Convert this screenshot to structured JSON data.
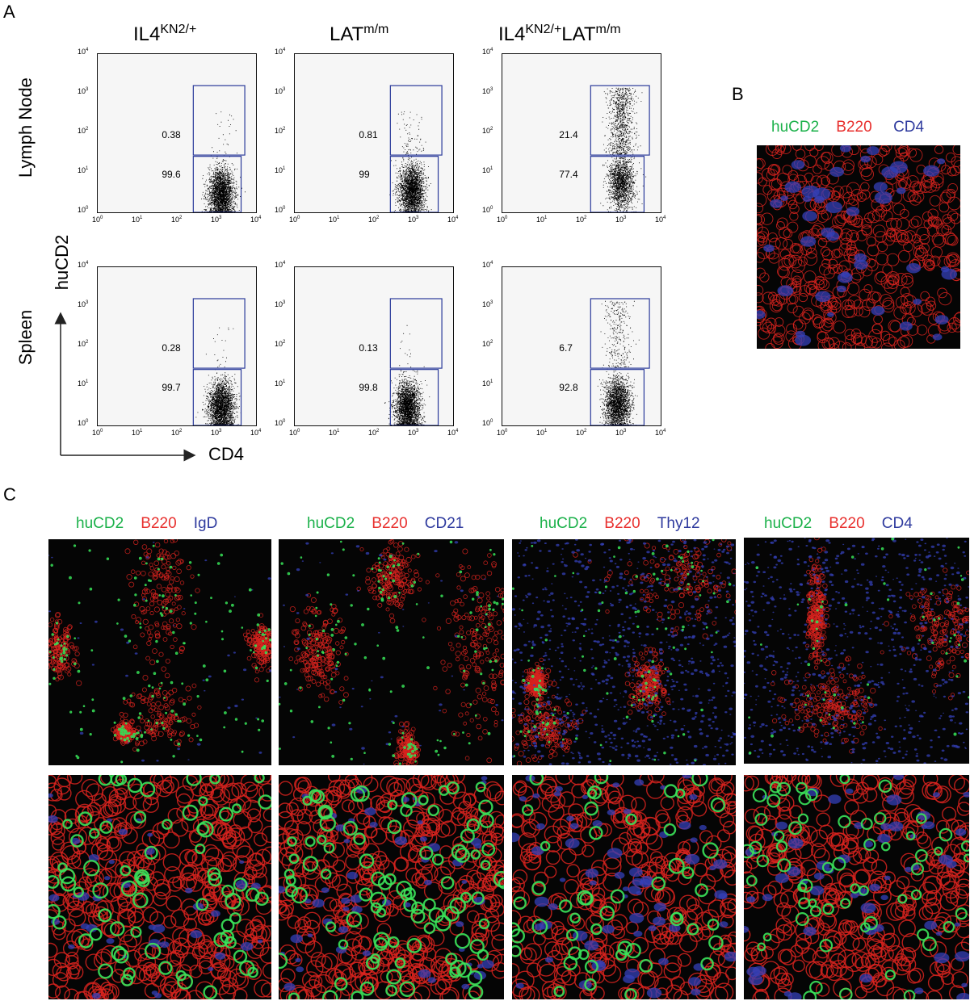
{
  "panels": {
    "a": "A",
    "b": "B",
    "c": "C"
  },
  "panel_a": {
    "columns": [
      {
        "base": "IL4",
        "sup": "KN2/+",
        "base2": "",
        "sup2": ""
      },
      {
        "base": "LAT",
        "sup": "m/m",
        "base2": "",
        "sup2": ""
      },
      {
        "base": "IL4",
        "sup": "KN2/+",
        "base2": "LAT",
        "sup2": "m/m"
      }
    ],
    "rows": [
      "Lymph Node",
      "Spleen"
    ],
    "y_axis_label": "huCD2",
    "x_axis_label": "CD4",
    "tick_base": "10",
    "tick_exponents": [
      "0",
      "1",
      "2",
      "3",
      "4"
    ]
  },
  "chart_data": [
    {
      "type": "scatter",
      "row": "Lymph Node",
      "column": "IL4KN2/+",
      "xlabel": "CD4",
      "ylabel": "huCD2",
      "scale": "log",
      "xlim": [
        1,
        10000
      ],
      "ylim": [
        1,
        10000
      ],
      "gates": [
        {
          "name": "upper",
          "value": "0.38"
        },
        {
          "name": "lower",
          "value": "99.6"
        }
      ],
      "cluster_center": [
        1300,
        4
      ],
      "upper_fraction": 0.0038
    },
    {
      "type": "scatter",
      "row": "Lymph Node",
      "column": "LATm/m",
      "xlabel": "CD4",
      "ylabel": "huCD2",
      "scale": "log",
      "xlim": [
        1,
        10000
      ],
      "ylim": [
        1,
        10000
      ],
      "gates": [
        {
          "name": "upper",
          "value": "0.81"
        },
        {
          "name": "lower",
          "value": "99"
        }
      ],
      "cluster_center": [
        900,
        5
      ],
      "upper_fraction": 0.0081
    },
    {
      "type": "scatter",
      "row": "Lymph Node",
      "column": "IL4KN2/+LATm/m",
      "xlabel": "CD4",
      "ylabel": "huCD2",
      "scale": "log",
      "xlim": [
        1,
        10000
      ],
      "ylim": [
        1,
        10000
      ],
      "gates": [
        {
          "name": "upper",
          "value": "21.4"
        },
        {
          "name": "lower",
          "value": "77.4"
        }
      ],
      "cluster_center": [
        1000,
        8
      ],
      "upper_fraction": 0.214
    },
    {
      "type": "scatter",
      "row": "Spleen",
      "column": "IL4KN2/+",
      "xlabel": "CD4",
      "ylabel": "huCD2",
      "scale": "log",
      "xlim": [
        1,
        10000
      ],
      "ylim": [
        1,
        10000
      ],
      "gates": [
        {
          "name": "upper",
          "value": "0.28"
        },
        {
          "name": "lower",
          "value": "99.7"
        }
      ],
      "cluster_center": [
        1300,
        4
      ],
      "upper_fraction": 0.0028
    },
    {
      "type": "scatter",
      "row": "Spleen",
      "column": "LATm/m",
      "xlabel": "CD4",
      "ylabel": "huCD2",
      "scale": "log",
      "xlim": [
        1,
        10000
      ],
      "ylim": [
        1,
        10000
      ],
      "gates": [
        {
          "name": "upper",
          "value": "0.13"
        },
        {
          "name": "lower",
          "value": "99.8"
        }
      ],
      "cluster_center": [
        700,
        4
      ],
      "upper_fraction": 0.0013
    },
    {
      "type": "scatter",
      "row": "Spleen",
      "column": "IL4KN2/+LATm/m",
      "xlabel": "CD4",
      "ylabel": "huCD2",
      "scale": "log",
      "xlim": [
        1,
        10000
      ],
      "ylim": [
        1,
        10000
      ],
      "gates": [
        {
          "name": "upper",
          "value": "6.7"
        },
        {
          "name": "lower",
          "value": "92.8"
        }
      ],
      "cluster_center": [
        800,
        5
      ],
      "upper_fraction": 0.067
    }
  ],
  "panel_b": {
    "legend": [
      "huCD2",
      "B220",
      "CD4"
    ]
  },
  "panel_c": {
    "legends": [
      [
        "huCD2",
        "B220",
        "IgD"
      ],
      [
        "huCD2",
        "B220",
        "CD21"
      ],
      [
        "huCD2",
        "B220",
        "Thy12"
      ],
      [
        "huCD2",
        "B220",
        "CD4"
      ]
    ]
  },
  "colors": {
    "green": "#1bb14a",
    "red": "#e8302e",
    "blue": "#2e3a9e",
    "gate": "#2a3a9a"
  }
}
